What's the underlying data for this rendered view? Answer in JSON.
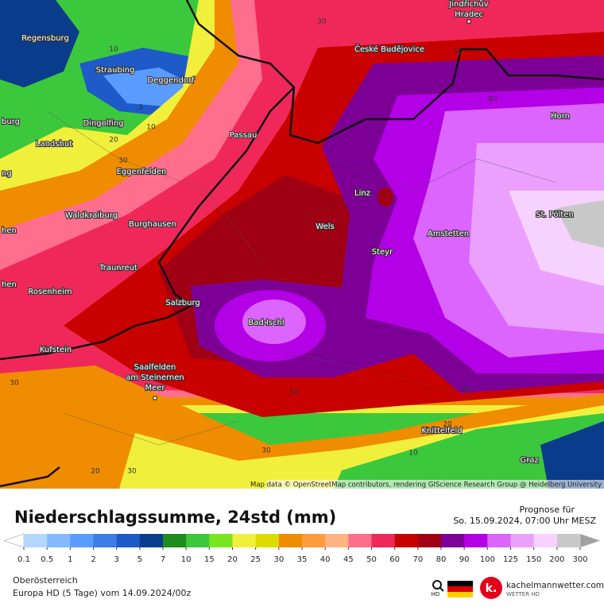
{
  "map": {
    "cities": [
      {
        "lines": [
          "Jindřichův",
          "Hradec"
        ]
      },
      {
        "lines": [
          "Regensburg"
        ]
      },
      {
        "lines": [
          "České Budějovice"
        ]
      },
      {
        "lines": [
          "Straubing"
        ]
      },
      {
        "lines": [
          "Deggendorf"
        ]
      },
      {
        "lines": [
          "Horn"
        ]
      },
      {
        "lines": [
          "burg"
        ]
      },
      {
        "lines": [
          "Dingolfing"
        ]
      },
      {
        "lines": [
          "Landshut"
        ]
      },
      {
        "lines": [
          "Passau"
        ]
      },
      {
        "lines": [
          "Eggenfelden"
        ]
      },
      {
        "lines": [
          "ng"
        ]
      },
      {
        "lines": [
          "Linz"
        ]
      },
      {
        "lines": [
          "St. Pölten"
        ]
      },
      {
        "lines": [
          "Waldkraiburg"
        ]
      },
      {
        "lines": [
          "Burghausen"
        ]
      },
      {
        "lines": [
          "Wels"
        ]
      },
      {
        "lines": [
          "hen"
        ]
      },
      {
        "lines": [
          "Amstetten"
        ]
      },
      {
        "lines": [
          "Steyr"
        ]
      },
      {
        "lines": [
          "Traunreut"
        ]
      },
      {
        "lines": [
          "hen"
        ]
      },
      {
        "lines": [
          "Rosenheim"
        ]
      },
      {
        "lines": [
          "Salzburg"
        ]
      },
      {
        "lines": [
          "Bad Ischl"
        ]
      },
      {
        "lines": [
          "Kufstein"
        ]
      },
      {
        "lines": [
          "Saalfelden",
          "am Steinernen",
          "Meer"
        ]
      },
      {
        "lines": [
          "Knittelfeld"
        ]
      },
      {
        "lines": [
          "Graz"
        ]
      }
    ],
    "contour_labels": [
      "30",
      "10",
      "3",
      "10",
      "20",
      "30",
      "50",
      "80",
      "30",
      "50",
      "80",
      "20",
      "30",
      "10",
      "20",
      "30"
    ],
    "attribution": "Map data © OpenStreetMap contributors, rendering GIScience Research Group @ Heidelberg University"
  },
  "legend": {
    "title": "Niederschlagssumme, 24std (mm)",
    "forecast_label": "Prognose für",
    "forecast_time": "So. 15.09.2024, 07:00 Uhr MESZ",
    "ticks": [
      0.1,
      0.5,
      1,
      2,
      3,
      5,
      7,
      10,
      15,
      20,
      25,
      30,
      35,
      40,
      45,
      50,
      60,
      70,
      80,
      90,
      100,
      125,
      150,
      200,
      300
    ],
    "colors": [
      "#b4d7ff",
      "#82b9ff",
      "#5a9bff",
      "#3c7de6",
      "#1e5ac8",
      "#0a3c8c",
      "#1e8c1e",
      "#3cc83c",
      "#78e61e",
      "#f0f03c",
      "#dcdc00",
      "#f08c00",
      "#ff9b3c",
      "#ffb482",
      "#ff6e8c",
      "#f0285a",
      "#c80000",
      "#a00014",
      "#7d0096",
      "#b400e6",
      "#dc64ff",
      "#eba0ff",
      "#f5d2ff",
      "#c8c8c8"
    ],
    "under_color": "#ffffff",
    "over_color": "#a0a0a0"
  },
  "footer": {
    "region": "Oberösterreich",
    "model": "Europa HD (5 Tage) vom  14.09.2024/00z",
    "hd_label": "HD",
    "logo_letter": "k.",
    "brand": "kachelmannwetter.com",
    "brand_sub": "WETTER HD"
  }
}
